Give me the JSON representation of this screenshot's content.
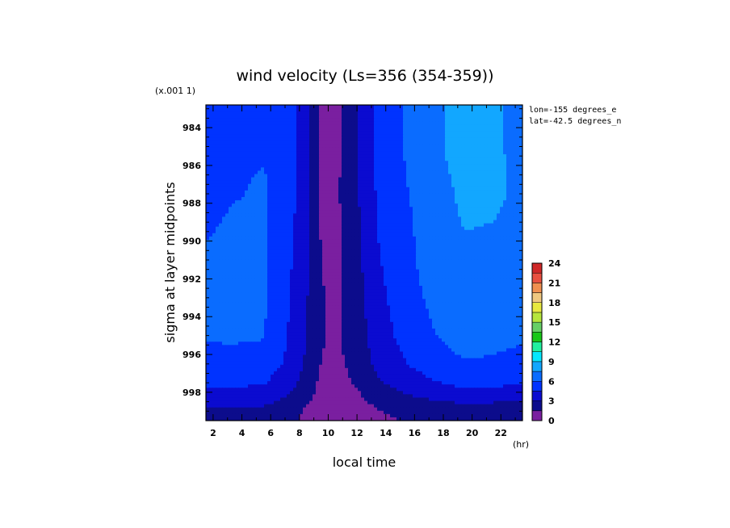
{
  "chart_data": {
    "type": "heatmap",
    "title": "wind velocity (Ls=356 (354-359))",
    "scale_note": "(x.001 1)",
    "xlabel": "local time",
    "x_unit": "(hr)",
    "ylabel": "sigma at layer midpoints",
    "info_lines": [
      "lon=-155 degrees_e",
      "lat=-42.5 degrees_n"
    ],
    "xlim": [
      1.5,
      23.5
    ],
    "ylim": [
      999.5,
      982.8
    ],
    "x_ticks": [
      "2",
      "4",
      "6",
      "8",
      "10",
      "12",
      "14",
      "16",
      "18",
      "20",
      "22"
    ],
    "y_ticks": [
      "984",
      "986",
      "988",
      "990",
      "992",
      "994",
      "996",
      "998"
    ],
    "colorbar": {
      "ticks": [
        "0",
        "3",
        "6",
        "9",
        "12",
        "15",
        "18",
        "21",
        "24"
      ],
      "levels": [
        0,
        1.5,
        3,
        4.5,
        6,
        7.5,
        9,
        10.5,
        12,
        13.5,
        15,
        16.5,
        18,
        19.5,
        21,
        22.5,
        24
      ],
      "colors": [
        "#7a1fa0",
        "#0c0c8c",
        "#0b0bd0",
        "#0033ff",
        "#0a6cff",
        "#12a7ff",
        "#06e8ff",
        "#20f0a0",
        "#18c818",
        "#66d066",
        "#b6e63c",
        "#e8e840",
        "#f0c880",
        "#f09050",
        "#e85040",
        "#d02828",
        "#f2a0a0"
      ]
    },
    "x": [
      1.5,
      3.5,
      5.5,
      7.5,
      8.5,
      9.5,
      10.5,
      11.5,
      12.5,
      13.5,
      15.5,
      17.5,
      19.5,
      21.5,
      23.5
    ],
    "y": [
      982.8,
      985,
      987,
      989,
      991,
      993,
      995,
      996.5,
      997.5,
      998.3,
      998.9,
      999.5
    ],
    "z": [
      [
        5.4,
        5.6,
        5.6,
        4.8,
        3.6,
        1.2,
        1.0,
        2.0,
        3.6,
        4.8,
        6.2,
        7.2,
        8.4,
        7.8,
        7.0
      ],
      [
        5.3,
        5.7,
        5.8,
        4.8,
        3.5,
        1.3,
        1.1,
        2.1,
        3.5,
        4.8,
        6.2,
        7.2,
        8.3,
        7.8,
        7.0
      ],
      [
        5.6,
        5.8,
        6.2,
        4.8,
        3.5,
        1.3,
        1.2,
        2.2,
        3.5,
        4.8,
        6.0,
        7.0,
        7.9,
        7.6,
        7.4
      ],
      [
        5.8,
        6.2,
        6.2,
        4.7,
        3.4,
        1.4,
        1.2,
        2.1,
        3.4,
        4.6,
        5.8,
        6.8,
        7.6,
        7.5,
        7.4
      ],
      [
        6.2,
        6.4,
        6.3,
        4.5,
        3.2,
        1.5,
        1.2,
        2.0,
        3.2,
        4.4,
        5.7,
        6.7,
        7.2,
        7.1,
        6.9
      ],
      [
        6.2,
        6.3,
        6.2,
        4.3,
        3.1,
        1.6,
        1.2,
        1.9,
        3.0,
        4.1,
        5.5,
        6.4,
        7.0,
        6.8,
        6.5
      ],
      [
        6.1,
        6.2,
        6.1,
        4.2,
        3.0,
        1.6,
        1.3,
        1.8,
        2.8,
        3.8,
        5.1,
        6.0,
        6.6,
        6.4,
        6.2
      ],
      [
        5.7,
        5.5,
        5.4,
        4.0,
        2.7,
        1.5,
        1.2,
        1.7,
        2.5,
        3.4,
        4.5,
        5.4,
        5.9,
        5.8,
        5.6
      ],
      [
        4.8,
        4.8,
        4.6,
        3.4,
        2.3,
        1.2,
        1.0,
        1.4,
        2.0,
        2.8,
        3.7,
        4.4,
        5.0,
        4.9,
        4.7
      ],
      [
        3.8,
        3.8,
        3.6,
        2.7,
        1.8,
        1.0,
        0.7,
        1.0,
        1.5,
        2.1,
        2.8,
        3.2,
        3.5,
        3.4,
        3.2
      ],
      [
        2.9,
        2.9,
        2.8,
        2.0,
        1.4,
        0.8,
        0.6,
        0.8,
        1.1,
        1.5,
        2.0,
        2.3,
        2.5,
        2.4,
        2.3
      ],
      [
        2.3,
        2.3,
        2.2,
        1.7,
        1.2,
        0.7,
        0.5,
        0.7,
        0.9,
        1.2,
        1.6,
        1.8,
        2.0,
        1.9,
        1.8
      ]
    ]
  }
}
